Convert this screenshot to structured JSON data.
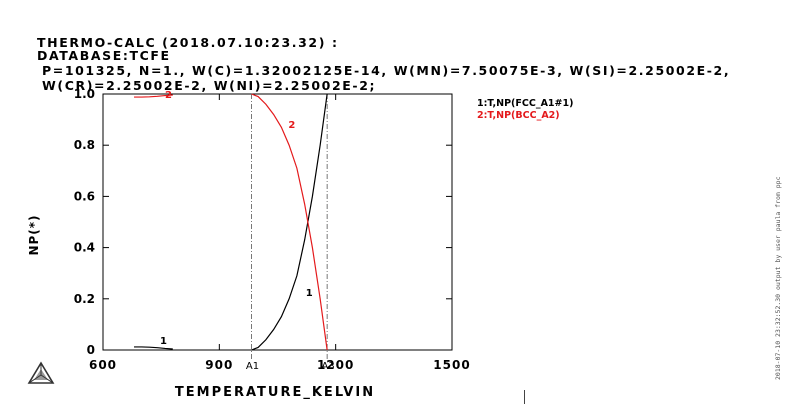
{
  "header": {
    "line1": "THERMO-CALC (2018.07.10:23.32) :",
    "line2": "DATABASE:TCFE",
    "line3": "P=101325, N=1., W(C)=1.32002125E-14, W(MN)=7.50075E-3, W(SI)=2.25002E-2,",
    "line4": "W(CR)=2.25002E-2, W(NI)=2.25002E-2;"
  },
  "side_note": "2018-07-10 23:32:52.30 output by user paula from ppc",
  "chart_data": {
    "type": "line",
    "xlabel": "TEMPERATURE_KELVIN",
    "ylabel": "NP(*)",
    "xlim": [
      600,
      1500
    ],
    "ylim": [
      0,
      1.0
    ],
    "x_ticks": [
      600,
      900,
      1200,
      1500
    ],
    "x_tick_labels": [
      "600",
      "900",
      "1200",
      "1500"
    ],
    "y_ticks": [
      0,
      0.2,
      0.4,
      0.6,
      0.8,
      1.0
    ],
    "y_tick_labels": [
      "0",
      "0.2",
      "0.4",
      "0.6",
      "0.8",
      "1.0"
    ],
    "grid": false,
    "legend_position": "top-right",
    "markers": [
      {
        "label": "A1",
        "x": 983
      },
      {
        "label": "A3",
        "x": 1178
      }
    ],
    "series": [
      {
        "name": "1:T,NP(FCC_A1#1)",
        "tag": "1",
        "color": "#000000",
        "x": [
          680,
          700,
          720,
          740,
          760,
          780,
          983,
          1000,
          1020,
          1040,
          1060,
          1080,
          1100,
          1120,
          1140,
          1160,
          1178
        ],
        "y": [
          0.012,
          0.012,
          0.011,
          0.009,
          0.006,
          0.004,
          0.0,
          0.01,
          0.04,
          0.08,
          0.13,
          0.2,
          0.29,
          0.43,
          0.6,
          0.8,
          1.0
        ]
      },
      {
        "name": "2:T,NP(BCC_A2)",
        "tag": "2",
        "color": "#e41a1c",
        "x": [
          680,
          700,
          720,
          740,
          760,
          780,
          983,
          1000,
          1020,
          1040,
          1060,
          1080,
          1100,
          1120,
          1140,
          1160,
          1178
        ],
        "y": [
          0.988,
          0.988,
          0.989,
          0.991,
          0.994,
          0.996,
          1.0,
          0.99,
          0.96,
          0.92,
          0.87,
          0.8,
          0.71,
          0.57,
          0.4,
          0.2,
          0.0
        ]
      }
    ]
  }
}
